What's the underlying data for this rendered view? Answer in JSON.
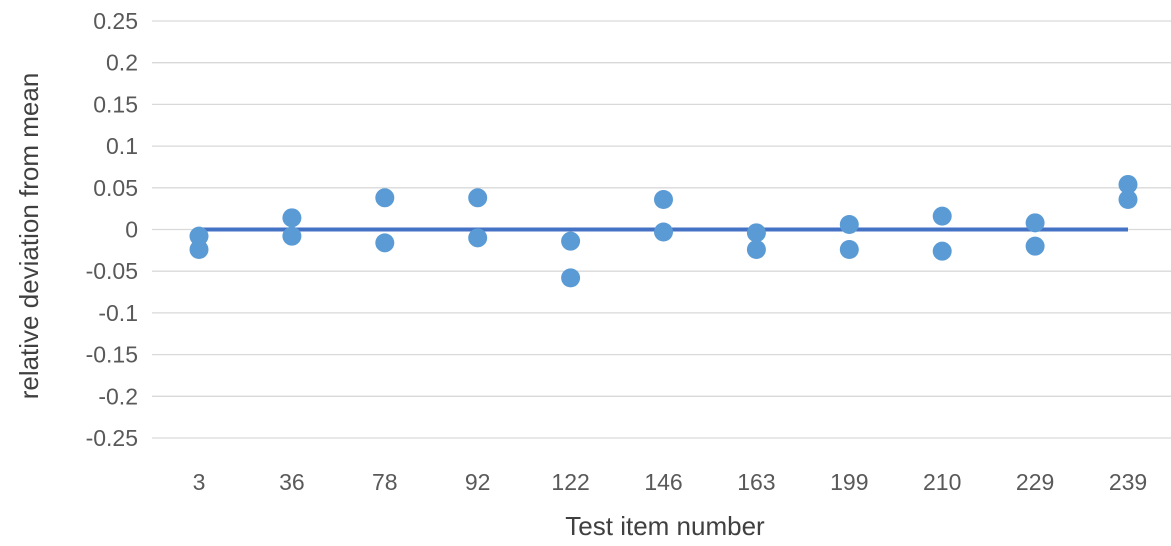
{
  "chart_data": {
    "type": "scatter",
    "title": "",
    "xlabel": "Test item number",
    "ylabel": "relative deviation from mean",
    "categories": [
      "3",
      "36",
      "78",
      "92",
      "122",
      "146",
      "163",
      "199",
      "210",
      "229",
      "239"
    ],
    "ylim": [
      -0.25,
      0.25
    ],
    "yticks": [
      "0.25",
      "0.2",
      "0.15",
      "0.1",
      "0.05",
      "0",
      "-0.05",
      "-0.1",
      "-0.15",
      "-0.2",
      "-0.25"
    ],
    "ytick_values": [
      0.25,
      0.2,
      0.15,
      0.1,
      0.05,
      0,
      -0.05,
      -0.1,
      -0.15,
      -0.2,
      -0.25
    ],
    "grid": true,
    "series": [
      {
        "values": [
          [
            -0.008,
            -0.024
          ],
          [
            0.014,
            -0.008
          ],
          [
            0.038,
            -0.016
          ],
          [
            0.038,
            -0.01
          ],
          [
            -0.014,
            -0.058
          ],
          [
            0.036,
            -0.003
          ],
          [
            -0.004,
            -0.024
          ],
          [
            0.006,
            -0.024
          ],
          [
            0.016,
            -0.026
          ],
          [
            0.008,
            -0.02
          ],
          [
            0.054,
            0.036
          ]
        ]
      }
    ],
    "reference_line": {
      "value": 0
    },
    "colors": {
      "points": "#5b9bd5",
      "reference_line": "#4472c4",
      "grid": "#d9d9d9"
    }
  }
}
